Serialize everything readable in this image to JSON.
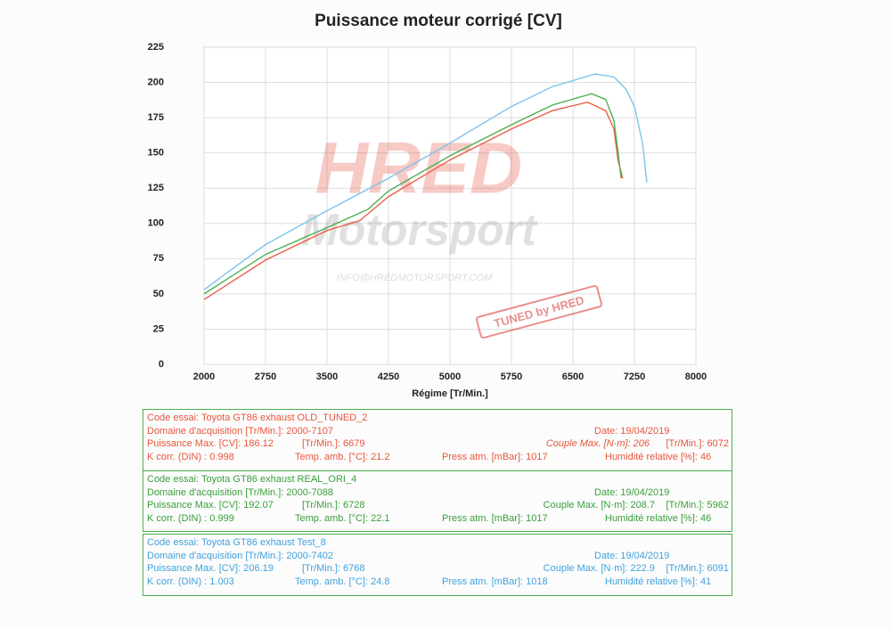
{
  "chart_data": {
    "type": "line",
    "title": "Puissance moteur corrigé [CV]",
    "x_label": "Régime [Tr/Min.]",
    "xlim": [
      2000,
      8000
    ],
    "xticks": [
      2000,
      2750,
      3500,
      4250,
      5000,
      5750,
      6500,
      7250,
      8000
    ],
    "ylim": [
      0,
      225
    ],
    "yticks": [
      0,
      25,
      50,
      75,
      100,
      125,
      150,
      175,
      200,
      225
    ],
    "grid": true,
    "watermarks": [
      "HRED",
      "Motorsport",
      "INFO@HREDMOTORSPORT.COM",
      "TUNED by HRED"
    ],
    "series": [
      {
        "color": "#e8604a",
        "x": [
          2000,
          2750,
          3500,
          3900,
          4250,
          5000,
          5750,
          6250,
          6679,
          6900,
          7000,
          7050,
          7107
        ],
        "values": [
          46,
          74,
          95,
          102,
          119,
          145,
          167,
          180,
          186,
          180,
          167,
          145,
          132
        ]
      },
      {
        "color": "#4caf50",
        "x": [
          2000,
          2750,
          3500,
          4000,
          4250,
          5000,
          5750,
          6250,
          6728,
          6900,
          7000,
          7050,
          7088
        ],
        "values": [
          50,
          78,
          97,
          110,
          123,
          148,
          170,
          184,
          192,
          188,
          173,
          151,
          132
        ]
      },
      {
        "color": "#7cc4ec",
        "x": [
          2000,
          2750,
          3500,
          4250,
          5000,
          5750,
          6250,
          6768,
          7000,
          7150,
          7250,
          7350,
          7402
        ],
        "values": [
          53,
          85,
          109,
          132,
          157,
          183,
          197,
          206,
          204,
          195,
          183,
          157,
          129
        ]
      }
    ]
  },
  "info_blocks": [
    {
      "color": "#e8553b",
      "rows": [
        [
          "Code essai: Toyota GT86 exhaust OLD_TUNED_2"
        ],
        [
          "Domaine d'acquisition [Tr/Min.]: 2000-7107",
          "Date: 19/04/2019"
        ],
        [
          "Puissance Max. [CV]: 186.12",
          "[Tr/Min.]: 6679",
          "Couple Max. [N·m]: 206",
          "[Tr/Min.]: 6072"
        ],
        [
          "K corr. (DIN) : 0.998",
          "Temp. amb. [°C]: 21.2",
          "Press atm. [mBar]: 1017",
          "Humidité relative [%]: 46"
        ]
      ]
    },
    {
      "color": "#3a9e3a",
      "rows": [
        [
          "Code essai: Toyota GT86 exhaust REAL_ORI_4"
        ],
        [
          "Domaine d'acquisition [Tr/Min.]: 2000-7088",
          "Date: 19/04/2019"
        ],
        [
          "Puissance Max. [CV]: 192.07",
          "[Tr/Min.]: 6728",
          "Couple Max. [N·m]: 208.7",
          "[Tr/Min.]: 5962"
        ],
        [
          "K corr. (DIN) : 0.999",
          "Temp. amb. [°C]: 22.1",
          "Press atm. [mBar]: 1017",
          "Humidité relative [%]: 46"
        ]
      ]
    },
    {
      "color": "#3fa2dc",
      "rows": [
        [
          "Code essai: Toyota GT86 exhaust Test_8"
        ],
        [
          "Domaine d'acquisition [Tr/Min.]: 2000-7402",
          "Date: 19/04/2019"
        ],
        [
          "Puissance Max. [CV]: 206.19",
          "[Tr/Min.]: 6768",
          "Couple Max. [N·m]: 222.9",
          "[Tr/Min.]: 6091"
        ],
        [
          "K corr. (DIN) : 1.003",
          "Temp. amb. [°C]: 24.8",
          "Press atm. [mBar]: 1018",
          "Humidité relative [%]: 41"
        ]
      ]
    }
  ]
}
